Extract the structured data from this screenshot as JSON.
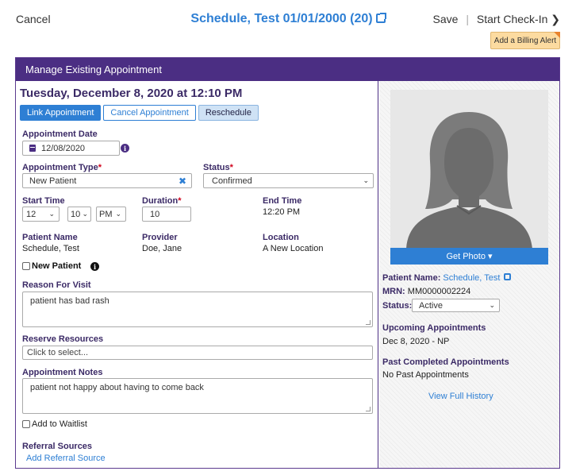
{
  "topbar": {
    "cancel": "Cancel",
    "title": "Schedule, Test 01/01/2000 (20)",
    "save": "Save",
    "separator": "|",
    "start_checkin": "Start Check-In",
    "chevron": "❯",
    "billing_alert": "Add a Billing Alert"
  },
  "panel": {
    "header": "Manage Existing Appointment"
  },
  "appointment": {
    "heading": "Tuesday, December 8, 2020 at 12:10 PM",
    "buttons": {
      "link": "Link Appointment",
      "cancel": "Cancel Appointment",
      "reschedule": "Reschedule"
    },
    "date_label": "Appointment Date",
    "date_value": "12/08/2020",
    "type_label": "Appointment Type",
    "type_value": "New Patient",
    "status_label": "Status",
    "status_value": "Confirmed",
    "required_mark": "*",
    "start_time_label": "Start Time",
    "start_hour": "12",
    "start_minute": "10",
    "start_ampm": "PM",
    "duration_label": "Duration",
    "duration_value": "10",
    "end_time_label": "End Time",
    "end_time_value": "12:20 PM",
    "patient_name_label": "Patient Name",
    "patient_name_value": "Schedule, Test",
    "provider_label": "Provider",
    "provider_value": "Doe, Jane",
    "location_label": "Location",
    "location_value": "A New Location",
    "new_patient_label": "New Patient",
    "reason_label": "Reason For Visit",
    "reason_value": "patient has bad rash",
    "resources_label": "Reserve Resources",
    "resources_placeholder": "Click to select...",
    "notes_label": "Appointment Notes",
    "notes_value": "patient not happy about having to come back",
    "waitlist_label": "Add to Waitlist",
    "referral_label": "Referral Sources",
    "add_referral": "Add Referral Source"
  },
  "patient": {
    "get_photo": "Get Photo ▾",
    "name_label": "Patient Name:",
    "name_value": "Schedule, Test",
    "mrn_label": "MRN:",
    "mrn_value": "MM0000002224",
    "status_label": "Status:",
    "status_value": "Active",
    "upcoming_label": "Upcoming Appointments",
    "upcoming_value": "Dec 8, 2020 - NP",
    "past_label": "Past Completed Appointments",
    "past_value": "No Past Appointments",
    "view_history": "View Full History"
  },
  "icons": [
    "calendar-icon",
    "info-icon",
    "clear-x-icon",
    "chevron-down-icon",
    "external-link-icon",
    "chevron-right-icon",
    "avatar-silhouette"
  ],
  "colors": {
    "header_purple": "#4b2e83",
    "link_blue": "#2e7fd4",
    "alert_orange": "#fcdba0",
    "required_red": "#d0021b"
  }
}
